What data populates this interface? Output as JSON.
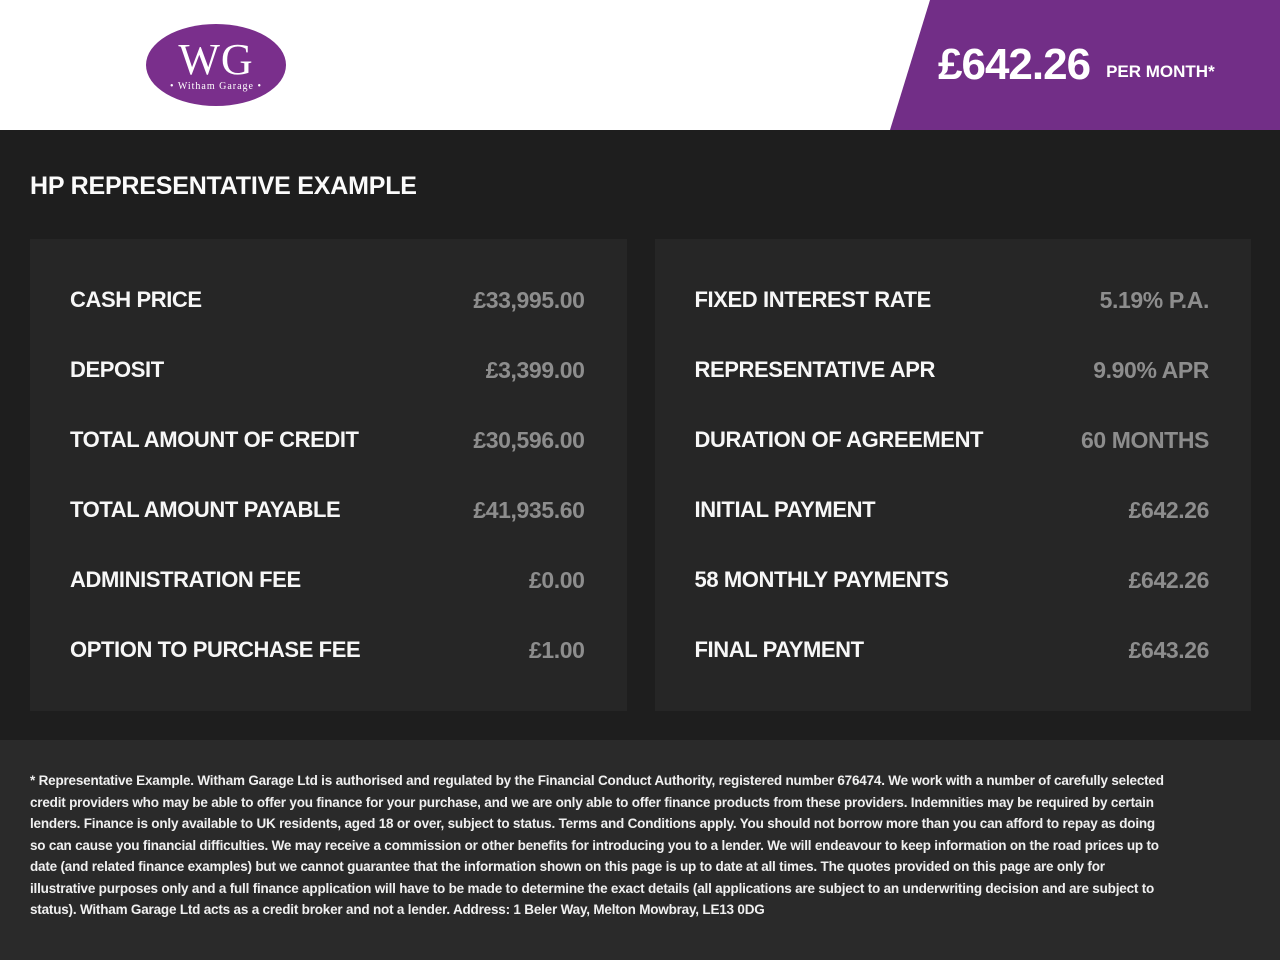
{
  "header": {
    "logo": {
      "initials": "WG",
      "name": "• Witham Garage •"
    },
    "banner": {
      "price": "£642.26",
      "suffix": "PER MONTH*"
    }
  },
  "main": {
    "title": "HP REPRESENTATIVE EXAMPLE",
    "left_panel": {
      "rows": [
        {
          "label": "CASH PRICE",
          "value": "£33,995.00"
        },
        {
          "label": "DEPOSIT",
          "value": "£3,399.00"
        },
        {
          "label": "TOTAL AMOUNT OF CREDIT",
          "value": "£30,596.00"
        },
        {
          "label": "TOTAL AMOUNT PAYABLE",
          "value": "£41,935.60"
        },
        {
          "label": "ADMINISTRATION FEE",
          "value": "£0.00"
        },
        {
          "label": "OPTION TO PURCHASE FEE",
          "value": "£1.00"
        }
      ]
    },
    "right_panel": {
      "rows": [
        {
          "label": "FIXED INTEREST RATE",
          "value": "5.19% P.A."
        },
        {
          "label": "REPRESENTATIVE APR",
          "value": "9.90% APR"
        },
        {
          "label": "DURATION OF AGREEMENT",
          "value": "60 MONTHS"
        },
        {
          "label": "INITIAL PAYMENT",
          "value": "£642.26"
        },
        {
          "label": "58 MONTHLY PAYMENTS",
          "value": "£642.26"
        },
        {
          "label": "FINAL PAYMENT",
          "value": "£643.26"
        }
      ]
    }
  },
  "footer": {
    "disclaimer": "* Representative Example. Witham Garage Ltd is authorised and regulated by the Financial Conduct Authority, registered number 676474. We work with a number of carefully selected credit providers who may be able to offer you finance for your purchase, and we are only able to offer finance products from these providers. Indemnities may be required by certain lenders. Finance is only available to UK residents, aged 18 or over, subject to status. Terms and Conditions apply. You should not borrow more than you can afford to repay as doing so can cause you financial difficulties. We may receive a commission or other benefits for introducing you to a lender. We will endeavour to keep information on the road prices up to date (and related finance examples) but we cannot guarantee that the information shown on this page is up to date at all times. The quotes provided on this page are only for illustrative purposes only and a full finance application will have to be made to determine the exact details (all applications are subject to an underwriting decision and are subject to status). Witham Garage Ltd acts as a credit broker and not a lender. Address: 1 Beler Way, Melton Mowbray, LE13 0DG"
  },
  "colors": {
    "banner_purple": "#722e87",
    "logo_purple": "#7a2f8c",
    "page_background": "#1e1e1e",
    "panel_background": "#262626",
    "footer_background": "#2a2a2a",
    "value_gray": "#8d8d8d"
  }
}
